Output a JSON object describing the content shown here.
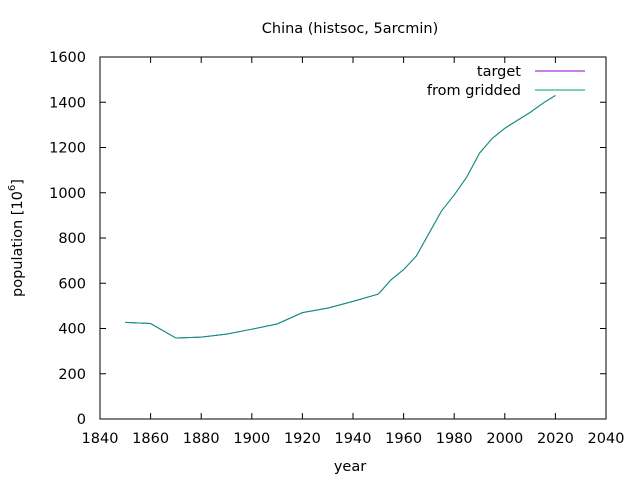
{
  "chart_data": {
    "type": "line",
    "title": "China (histsoc, 5arcmin)",
    "xlabel": "year",
    "ylabel_text": "population [10",
    "ylabel_exp": "6",
    "ylabel_close": "]",
    "xlim": [
      1840,
      2040
    ],
    "ylim": [
      0,
      1600
    ],
    "xticks": [
      1840,
      1860,
      1880,
      1900,
      1920,
      1940,
      1960,
      1980,
      2000,
      2020,
      2040
    ],
    "yticks": [
      0,
      200,
      400,
      600,
      800,
      1000,
      1200,
      1400,
      1600
    ],
    "grid": false,
    "legend_position": "top-right",
    "series": [
      {
        "name": "target",
        "color": "#9400d3",
        "x": [
          1850,
          1860,
          1870,
          1880,
          1890,
          1900,
          1910,
          1920,
          1930,
          1940,
          1950,
          1955,
          1960,
          1965,
          1970,
          1975,
          1980,
          1985,
          1990,
          1995,
          2000,
          2005,
          2010,
          2015,
          2020
        ],
        "values": [
          427,
          422,
          358,
          362,
          375,
          397,
          420,
          470,
          490,
          520,
          552,
          615,
          660,
          720,
          820,
          920,
          990,
          1070,
          1175,
          1240,
          1285,
          1320,
          1355,
          1395,
          1430
        ]
      },
      {
        "name": "from gridded",
        "color": "#009e73",
        "x": [
          1850,
          1860,
          1870,
          1880,
          1890,
          1900,
          1910,
          1920,
          1930,
          1940,
          1950,
          1955,
          1960,
          1965,
          1970,
          1975,
          1980,
          1985,
          1990,
          1995,
          2000,
          2005,
          2010,
          2015,
          2020
        ],
        "values": [
          427,
          422,
          358,
          362,
          375,
          397,
          420,
          470,
          490,
          520,
          552,
          615,
          660,
          720,
          820,
          920,
          990,
          1070,
          1175,
          1240,
          1285,
          1320,
          1355,
          1395,
          1430
        ]
      }
    ]
  }
}
